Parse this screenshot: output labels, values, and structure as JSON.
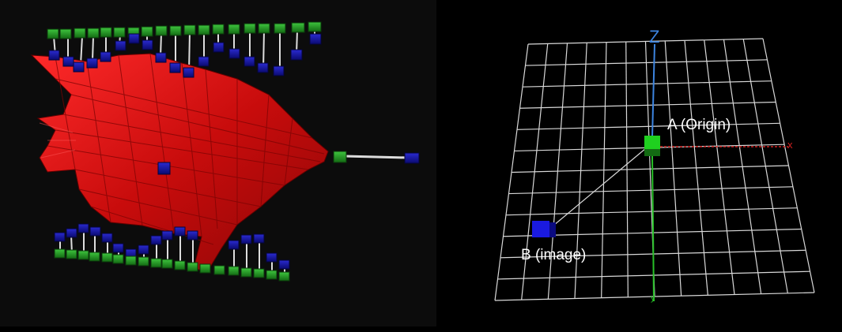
{
  "left_view": {
    "description_shape": "fish-mesh-icon"
  },
  "right_view": {
    "origin_label": "A (Origin)",
    "image_label": "B (image)",
    "axis_z_label": "Z",
    "axis_x_label": "x",
    "axis_y_label": "y"
  },
  "colors": {
    "fish": "#d01010",
    "green_marker": "#1fa01f",
    "blue_marker": "#1010c8",
    "grid": "#d8d8d8",
    "axis_z": "#3c84e0",
    "axis_x": "#d02020",
    "axis_y": "#28c028"
  }
}
